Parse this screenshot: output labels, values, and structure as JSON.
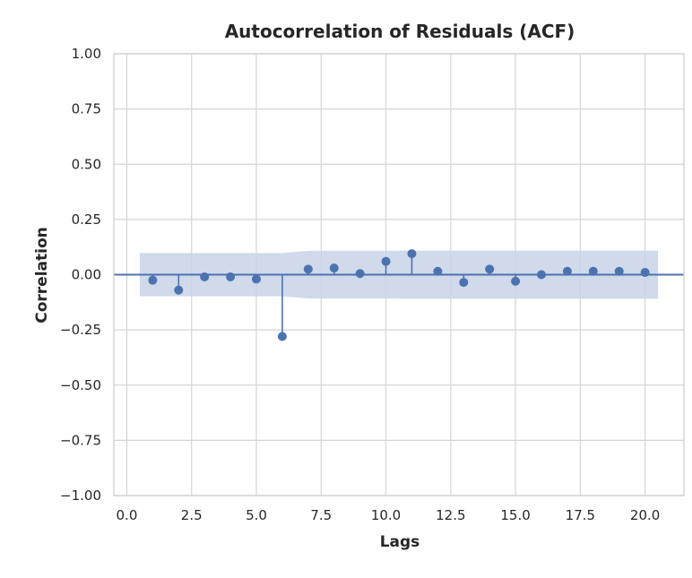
{
  "chart_data": {
    "type": "scatter",
    "subtype": "stem",
    "title": "Autocorrelation of Residuals (ACF)",
    "xlabel": "Lags",
    "ylabel": "Correlation",
    "xlim": [
      -0.5,
      21.5
    ],
    "ylim": [
      -1.0,
      1.0
    ],
    "x_ticks": [
      0.0,
      2.5,
      5.0,
      7.5,
      10.0,
      12.5,
      15.0,
      17.5,
      20.0
    ],
    "x_tick_labels": [
      "0.0",
      "2.5",
      "5.0",
      "7.5",
      "10.0",
      "12.5",
      "15.0",
      "17.5",
      "20.0"
    ],
    "y_ticks": [
      1.0,
      0.75,
      0.5,
      0.25,
      0.0,
      -0.25,
      -0.5,
      -0.75,
      -1.0
    ],
    "y_tick_labels": [
      "1.00",
      "0.75",
      "0.50",
      "0.25",
      "0.00",
      "−0.25",
      "−0.50",
      "−0.75",
      "−1.00"
    ],
    "grid": true,
    "colors": {
      "series": "#4c72b0",
      "band": "#c8d3e8",
      "grid": "#d4d4d4",
      "axes": "#cccccc"
    },
    "lags": [
      1,
      2,
      3,
      4,
      5,
      6,
      7,
      8,
      9,
      10,
      11,
      12,
      13,
      14,
      15,
      16,
      17,
      18,
      19,
      20
    ],
    "values": [
      -0.025,
      -0.07,
      -0.01,
      -0.01,
      -0.02,
      -0.28,
      0.025,
      0.03,
      0.005,
      0.06,
      0.095,
      0.015,
      -0.035,
      0.025,
      -0.03,
      0.0,
      0.015,
      0.015,
      0.015,
      0.01
    ],
    "confidence_band": {
      "x": [
        0.5,
        1,
        2,
        3,
        4,
        5,
        6,
        7,
        8,
        9,
        10,
        11,
        12,
        13,
        14,
        15,
        16,
        17,
        18,
        19,
        20,
        20.5
      ],
      "upper": [
        0.098,
        0.098,
        0.098,
        0.098,
        0.098,
        0.098,
        0.098,
        0.108,
        0.108,
        0.108,
        0.108,
        0.109,
        0.109,
        0.109,
        0.109,
        0.109,
        0.109,
        0.109,
        0.109,
        0.109,
        0.109,
        0.109
      ]
    }
  }
}
